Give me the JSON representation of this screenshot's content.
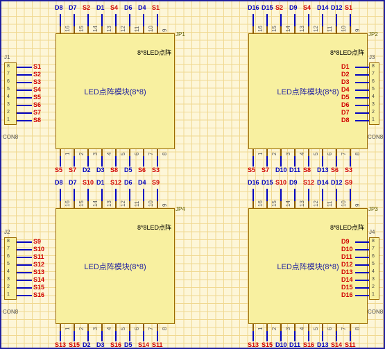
{
  "colors": {
    "bg": "#fdf6d8",
    "grid": "#f0d890",
    "module_fill": "#f8f0a0",
    "module_border": "#9a6a00",
    "wire_blue": "#0000c0",
    "net_red": "#d00000",
    "outer_border": "#2020a0"
  },
  "module": {
    "inner_label": "8*8LED点阵",
    "center_text": "LED点阵模块(8*8)",
    "pins_top": [
      "16",
      "15",
      "14",
      "13",
      "12",
      "11",
      "10",
      "9"
    ],
    "pins_bot": [
      "1",
      "2",
      "3",
      "4",
      "5",
      "6",
      "7",
      "8"
    ]
  },
  "connectors": {
    "left_label": "CON8",
    "pins": [
      "8",
      "7",
      "6",
      "5",
      "4",
      "3",
      "2",
      "1"
    ]
  },
  "panels": [
    {
      "pos": "tl",
      "jp": "JP1",
      "left_conn_ref": "J1",
      "top_nets": [
        "D8",
        "D7",
        "S2",
        "D1",
        "S4",
        "D6",
        "D4",
        "S1"
      ],
      "bot_nets": [
        "S5",
        "S7",
        "D2",
        "D3",
        "S8",
        "D5",
        "S6",
        "S3"
      ],
      "left_nets": [
        "S1",
        "S2",
        "S3",
        "S4",
        "S5",
        "S6",
        "S7",
        "S8"
      ],
      "has_right_conn": false,
      "right_conn_ref": "",
      "right_nets": []
    },
    {
      "pos": "tr",
      "jp": "JP2",
      "left_conn_ref": "",
      "top_nets": [
        "D16",
        "D15",
        "S2",
        "D9",
        "S4",
        "D14",
        "D12",
        "S1"
      ],
      "bot_nets": [
        "S5",
        "S7",
        "D10",
        "D11",
        "S8",
        "D13",
        "S6",
        "S3"
      ],
      "left_nets": [],
      "has_right_conn": true,
      "right_conn_ref": "J3",
      "right_nets": [
        "D1",
        "D2",
        "D3",
        "D4",
        "D5",
        "D6",
        "D7",
        "D8"
      ]
    },
    {
      "pos": "bl",
      "jp": "JP4",
      "left_conn_ref": "J2",
      "top_nets": [
        "D8",
        "D7",
        "S10",
        "D1",
        "S12",
        "D6",
        "D4",
        "S9"
      ],
      "bot_nets": [
        "S13",
        "S15",
        "D2",
        "D3",
        "S16",
        "D5",
        "S14",
        "S11"
      ],
      "left_nets": [
        "S9",
        "S10",
        "S11",
        "S12",
        "S13",
        "S14",
        "S15",
        "S16"
      ],
      "has_right_conn": false,
      "right_conn_ref": "",
      "right_nets": []
    },
    {
      "pos": "br",
      "jp": "JP3",
      "left_conn_ref": "",
      "top_nets": [
        "D16",
        "D15",
        "S10",
        "D9",
        "S12",
        "D14",
        "D12",
        "S9"
      ],
      "bot_nets": [
        "S13",
        "S15",
        "D10",
        "D11",
        "S16",
        "D13",
        "S14",
        "S11"
      ],
      "left_nets": [],
      "has_right_conn": true,
      "right_conn_ref": "J4",
      "right_nets": [
        "D9",
        "D10",
        "D11",
        "D12",
        "D13",
        "D14",
        "D15",
        "D16"
      ]
    }
  ]
}
